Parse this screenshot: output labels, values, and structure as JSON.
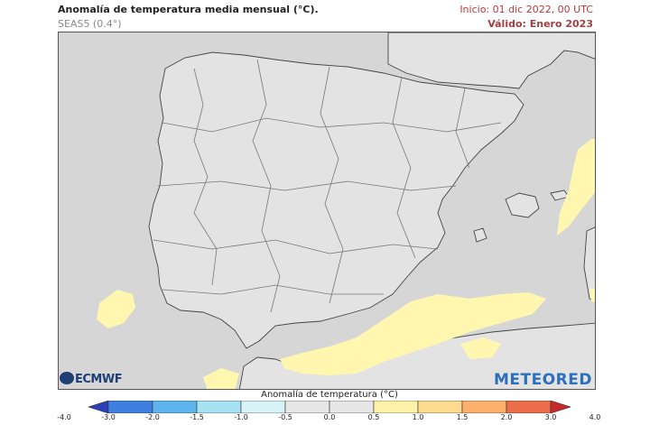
{
  "header": {
    "title": "Anomalía de temperatura media mensual (°C).",
    "subtitle": "SEAS5 (0.4°)",
    "init": "Inicio: 01 dic 2022, 00 UTC",
    "valid": "Válido: Enero 2023"
  },
  "logos": {
    "ecmwf": "ECMWF",
    "meteored": "METEORED"
  },
  "colors": {
    "sea": "#d6d6d6",
    "land": "#e3e3e3",
    "anomaly_0_5_1_0": "#fff7b0"
  },
  "legend": {
    "title": "Anomalía de temperatura (°C)",
    "ticks": [
      "-4.0",
      "-3.0",
      "-2.0",
      "-1.5",
      "-1.0",
      "-0.5",
      "0.0",
      "0.5",
      "1.0",
      "1.5",
      "2.0",
      "3.0",
      "4.0"
    ],
    "colors": [
      "#2b3fb8",
      "#3f7fe0",
      "#5eb5ee",
      "#a6e2f2",
      "#d8f3f7",
      "#e6e6e6",
      "#e6e6e6",
      "#fff2a8",
      "#fedb8e",
      "#fbb06b",
      "#ec6d49",
      "#c72a2a"
    ]
  }
}
